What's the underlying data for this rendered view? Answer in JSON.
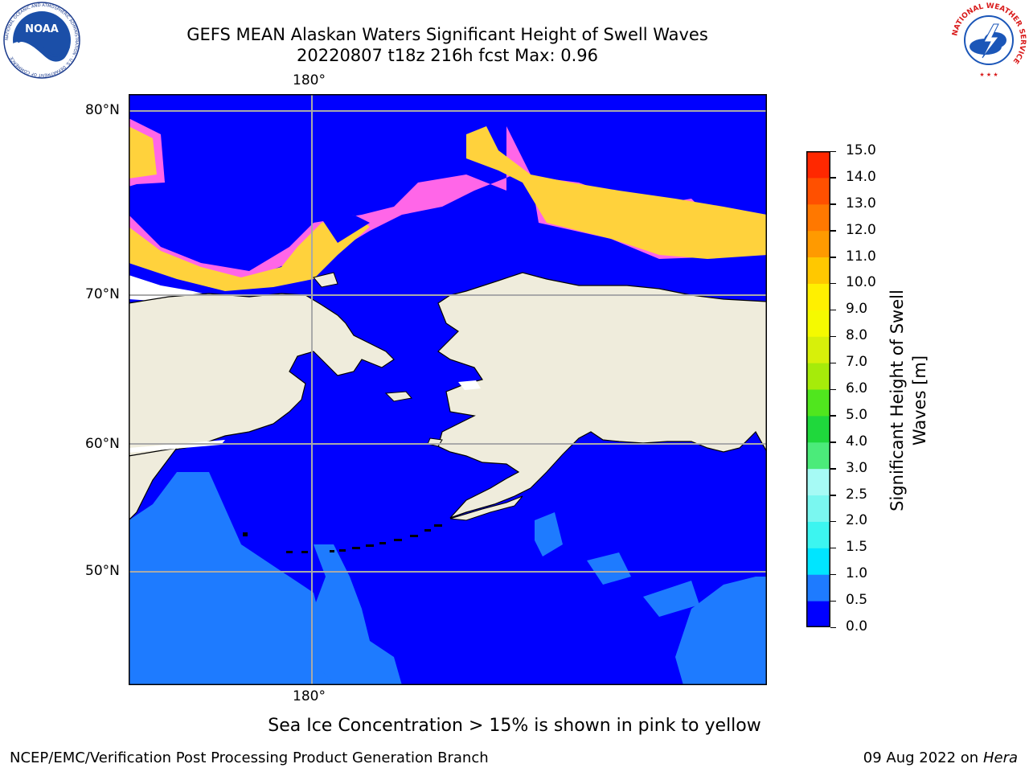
{
  "title": "GEFS MEAN Alaskan Waters Significant Height of Swell Waves",
  "subtitle": "20220807 t18z 216h fcst   Max: 0.96",
  "logos": {
    "noaa_text": "NOAA",
    "noaa_ring": "NATIONAL OCEANIC AND ATMOSPHERIC ADMINISTRATION · U.S. DEPARTMENT OF COMMERCE",
    "nws_ring": "NATIONAL WEATHER SERVICE"
  },
  "map": {
    "lon_label_top": "180°",
    "lon_label_bottom": "180°",
    "lat_labels": [
      "80°N",
      "70°N",
      "60°N",
      "50°N"
    ],
    "colors": {
      "land": "#EFECDC",
      "ocean_low": "#0000FF",
      "ocean_high": "#1E7BFF",
      "ice_pink": "#FF66E8",
      "ice_yellow": "#FFD23C",
      "grid": "#A9A9A9"
    }
  },
  "colorbar": {
    "label_line1": "Significant Height of Swell",
    "label_line2": "Waves [m]",
    "ticks": [
      "0.0",
      "0.5",
      "1.0",
      "1.5",
      "2.0",
      "2.5",
      "3.0",
      "4.0",
      "5.0",
      "6.0",
      "7.0",
      "8.0",
      "9.0",
      "10.0",
      "11.0",
      "12.0",
      "13.0",
      "14.0",
      "15.0"
    ],
    "colors": [
      "#0000FF",
      "#1E7BFF",
      "#00E5FF",
      "#3CF5F0",
      "#7AF7F0",
      "#A6FAF5",
      "#4BEB7A",
      "#1FD83C",
      "#50E61E",
      "#A6EB0A",
      "#D7F00A",
      "#F5FA00",
      "#FFF000",
      "#FFC800",
      "#FF9A00",
      "#FF7800",
      "#FF5000",
      "#FF2800"
    ]
  },
  "chart_data": {
    "type": "heatmap",
    "title": "GEFS MEAN Alaskan Waters Significant Height of Swell Waves",
    "forecast": "20220807 t18z 216h fcst",
    "max_value": 0.96,
    "units": "m",
    "colorbar_range": [
      0.0,
      15.0
    ]
  },
  "footnote": "Sea Ice Concentration > 15% is shown in pink to yellow",
  "credit": "NCEP/EMC/Verification Post Processing Product Generation Branch",
  "date_text": "09 Aug 2022 on",
  "date_host": "Hera"
}
